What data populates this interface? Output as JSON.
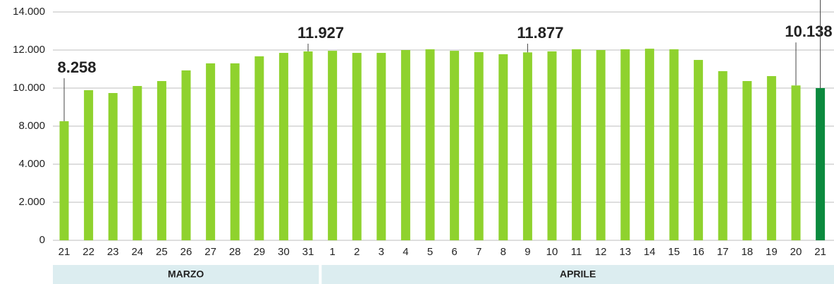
{
  "chart_data": {
    "type": "bar",
    "categories": [
      "21",
      "22",
      "23",
      "24",
      "25",
      "26",
      "27",
      "28",
      "29",
      "30",
      "31",
      "1",
      "2",
      "3",
      "4",
      "5",
      "6",
      "7",
      "8",
      "9",
      "10",
      "11",
      "12",
      "13",
      "14",
      "15",
      "16",
      "17",
      "18",
      "19",
      "20",
      "21"
    ],
    "values": [
      8258,
      9890,
      9740,
      10110,
      10370,
      10930,
      11300,
      11300,
      11670,
      11850,
      11927,
      11960,
      11850,
      11850,
      12000,
      12040,
      11960,
      11890,
      11780,
      11877,
      11930,
      12040,
      12000,
      12040,
      12070,
      12040,
      11480,
      10890,
      10370,
      10630,
      10138,
      10000
    ],
    "value_labels": [
      "8.258",
      null,
      null,
      null,
      null,
      null,
      null,
      null,
      null,
      null,
      "11.927",
      null,
      null,
      null,
      null,
      null,
      null,
      null,
      null,
      "11.877",
      null,
      null,
      null,
      null,
      null,
      null,
      null,
      null,
      null,
      null,
      "10.138",
      null
    ],
    "colors": [
      "#8fd22e",
      "#8fd22e",
      "#8fd22e",
      "#8fd22e",
      "#8fd22e",
      "#8fd22e",
      "#8fd22e",
      "#8fd22e",
      "#8fd22e",
      "#8fd22e",
      "#8fd22e",
      "#8fd22e",
      "#8fd22e",
      "#8fd22e",
      "#8fd22e",
      "#8fd22e",
      "#8fd22e",
      "#8fd22e",
      "#8fd22e",
      "#8fd22e",
      "#8fd22e",
      "#8fd22e",
      "#8fd22e",
      "#8fd22e",
      "#8fd22e",
      "#8fd22e",
      "#8fd22e",
      "#8fd22e",
      "#8fd22e",
      "#8fd22e",
      "#8fd22e",
      "#0b8a3e"
    ],
    "groups": [
      {
        "name": "MARZO",
        "start": 0,
        "end": 10
      },
      {
        "name": "APRILE",
        "start": 11,
        "end": 31
      }
    ],
    "ylim": [
      0,
      14000
    ],
    "yticks": [
      0,
      {
        "value": 2000,
        "label": "2.000"
      },
      {
        "value": 4000,
        "label": "4.000"
      },
      {
        "value": 8000,
        "label": "8.000"
      },
      {
        "value": 10000,
        "label": "10.000"
      },
      {
        "value": 12000,
        "label": "12.000"
      },
      {
        "value": 14000,
        "label": "14.000"
      }
    ],
    "grid": true
  }
}
